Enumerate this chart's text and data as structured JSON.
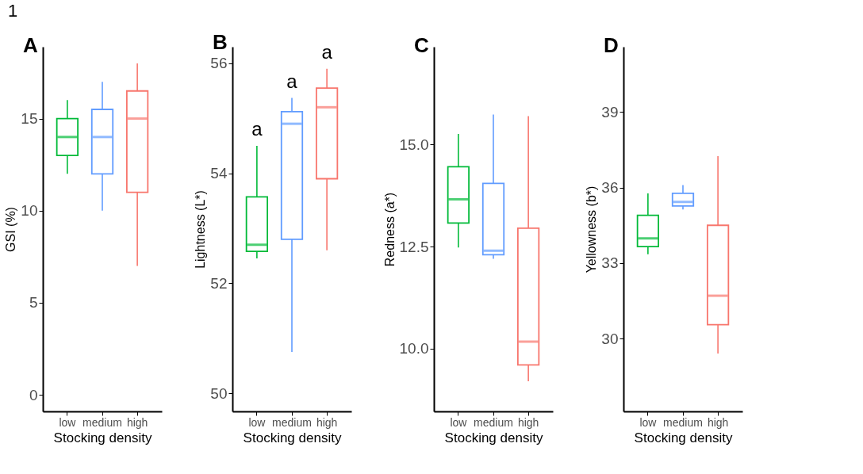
{
  "chart_data": [
    {
      "type": "box",
      "title": "A",
      "xlabel": "Stocking density",
      "ylabel": "GSI (%)",
      "categories": [
        "low",
        "medium",
        "high"
      ],
      "colors": [
        "#00ba38",
        "#619cff",
        "#f8766d"
      ],
      "ylim": [
        -0.9,
        18.9
      ],
      "yticks": [
        0,
        5,
        10,
        15
      ],
      "grid": false,
      "annotations": [
        "1"
      ],
      "boxes": [
        {
          "low": 12,
          "q1": 13,
          "median": 14,
          "q3": 15,
          "high": 16
        },
        {
          "low": 10,
          "q1": 12,
          "median": 14,
          "q3": 15.5,
          "high": 17
        },
        {
          "low": 7,
          "q1": 11,
          "median": 15,
          "q3": 16.5,
          "high": 18
        }
      ]
    },
    {
      "type": "box",
      "title": "B",
      "xlabel": "Stocking density",
      "ylabel": "Lightness (L*)",
      "categories": [
        "low",
        "medium",
        "high"
      ],
      "colors": [
        "#00ba38",
        "#619cff",
        "#f8766d"
      ],
      "ylim": [
        49.67,
        56.3
      ],
      "yticks": [
        50,
        52,
        54,
        56
      ],
      "grid": false,
      "annotations": [
        "a",
        "a",
        "a"
      ],
      "boxes": [
        {
          "low": 52.45,
          "q1": 52.58,
          "median": 52.7,
          "q3": 53.57,
          "high": 54.5
        },
        {
          "low": 50.75,
          "q1": 52.8,
          "median": 54.9,
          "q3": 55.12,
          "high": 55.37
        },
        {
          "low": 52.6,
          "q1": 53.9,
          "median": 55.2,
          "q3": 55.55,
          "high": 55.9
        }
      ]
    },
    {
      "type": "box",
      "title": "C",
      "xlabel": "Stocking density",
      "ylabel": "Redness (a*)",
      "categories": [
        "low",
        "medium",
        "high"
      ],
      "colors": [
        "#00ba38",
        "#619cff",
        "#f8766d"
      ],
      "ylim": [
        8.46,
        17.4
      ],
      "yticks": [
        {
          "value": 10,
          "label": "10.0"
        },
        12.5,
        {
          "value": 15,
          "label": "15.0"
        }
      ],
      "grid": false,
      "boxes": [
        {
          "low": 12.48,
          "q1": 13.08,
          "median": 13.66,
          "q3": 14.46,
          "high": 15.26
        },
        {
          "low": 12.2,
          "q1": 12.3,
          "median": 12.4,
          "q3": 14.05,
          "high": 15.74
        },
        {
          "low": 9.2,
          "q1": 9.6,
          "median": 10.17,
          "q3": 12.95,
          "high": 15.7
        }
      ]
    },
    {
      "type": "box",
      "title": "D",
      "xlabel": "Stocking density",
      "ylabel": "Yellowness (b*)",
      "categories": [
        "low",
        "medium",
        "high"
      ],
      "colors": [
        "#00ba38",
        "#619cff",
        "#f8766d"
      ],
      "ylim": [
        27.1,
        41.6
      ],
      "yticks": [
        30,
        33,
        36,
        39
      ],
      "grid": false,
      "boxes": [
        {
          "low": 33.35,
          "q1": 33.65,
          "median": 33.98,
          "q3": 34.9,
          "high": 35.77
        },
        {
          "low": 35.13,
          "q1": 35.27,
          "median": 35.43,
          "q3": 35.77,
          "high": 36.1
        },
        {
          "low": 29.4,
          "q1": 30.55,
          "median": 31.7,
          "q3": 34.5,
          "high": 37.25
        }
      ]
    }
  ]
}
